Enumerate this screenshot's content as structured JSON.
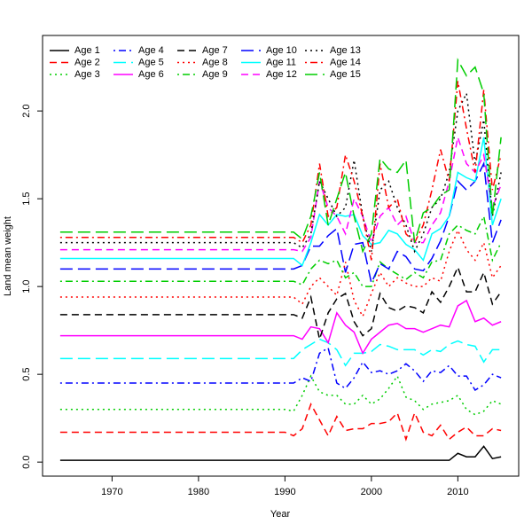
{
  "chart_data": {
    "type": "line",
    "x": [
      1964,
      1990,
      1991,
      1992,
      1993,
      1994,
      1995,
      1996,
      1997,
      1998,
      1999,
      2000,
      2001,
      2002,
      2003,
      2004,
      2005,
      2006,
      2007,
      2008,
      2009,
      2010,
      2011,
      2012,
      2013,
      2014,
      2015
    ],
    "xlim": [
      1961.96,
      2017.04
    ],
    "xticks": [
      1970,
      1980,
      1990,
      2000,
      2010
    ],
    "ylim": [
      -0.08,
      2.43
    ],
    "yticks": [
      {
        "value": 0,
        "label": "0.0"
      },
      {
        "value": 0.5,
        "label": "0.5"
      },
      {
        "value": 1,
        "label": "1.0"
      },
      {
        "value": 1.5,
        "label": "1.5"
      },
      {
        "value": 2,
        "label": "2.0"
      }
    ],
    "xlabel": "Year",
    "ylabel": "Land mean weight",
    "legend": "top-left",
    "series": [
      {
        "name": "Age 1",
        "color": "#000000",
        "linestyle": "solid",
        "values": [
          0.01,
          0.01,
          0.01,
          0.01,
          0.01,
          0.01,
          0.01,
          0.01,
          0.01,
          0.01,
          0.01,
          0.01,
          0.01,
          0.01,
          0.01,
          0.01,
          0.01,
          0.01,
          0.01,
          0.01,
          0.01,
          0.05,
          0.03,
          0.03,
          0.09,
          0.02,
          0.03
        ]
      },
      {
        "name": "Age 2",
        "color": "#ff0000",
        "linestyle": "dashed",
        "values": [
          0.17,
          0.17,
          0.15,
          0.19,
          0.33,
          0.24,
          0.15,
          0.26,
          0.18,
          0.19,
          0.19,
          0.22,
          0.22,
          0.23,
          0.28,
          0.13,
          0.28,
          0.17,
          0.15,
          0.21,
          0.13,
          0.17,
          0.2,
          0.15,
          0.15,
          0.19,
          0.18
        ]
      },
      {
        "name": "Age 3",
        "color": "#00cd00",
        "linestyle": "dotted",
        "values": [
          0.3,
          0.3,
          0.29,
          0.38,
          0.49,
          0.4,
          0.38,
          0.38,
          0.33,
          0.33,
          0.38,
          0.33,
          0.36,
          0.42,
          0.49,
          0.37,
          0.35,
          0.3,
          0.33,
          0.34,
          0.35,
          0.38,
          0.3,
          0.27,
          0.29,
          0.35,
          0.33
        ]
      },
      {
        "name": "Age 4",
        "color": "#0000ff",
        "linestyle": "dotdash",
        "values": [
          0.45,
          0.45,
          0.45,
          0.48,
          0.46,
          0.62,
          0.65,
          0.45,
          0.42,
          0.48,
          0.57,
          0.51,
          0.52,
          0.5,
          0.52,
          0.56,
          0.52,
          0.46,
          0.52,
          0.51,
          0.55,
          0.49,
          0.49,
          0.41,
          0.44,
          0.5,
          0.48
        ]
      },
      {
        "name": "Age 5",
        "color": "#00ffff",
        "linestyle": "longdash",
        "values": [
          0.59,
          0.59,
          0.59,
          0.64,
          0.67,
          0.7,
          0.68,
          0.64,
          0.55,
          0.62,
          0.62,
          0.63,
          0.67,
          0.66,
          0.64,
          0.64,
          0.64,
          0.61,
          0.64,
          0.63,
          0.67,
          0.69,
          0.67,
          0.66,
          0.57,
          0.64,
          0.64
        ]
      },
      {
        "name": "Age 6",
        "color": "#ff00ff",
        "linestyle": "solid",
        "values": [
          0.72,
          0.72,
          0.72,
          0.7,
          0.77,
          0.76,
          0.68,
          0.85,
          0.78,
          0.74,
          0.62,
          0.7,
          0.74,
          0.78,
          0.79,
          0.76,
          0.76,
          0.74,
          0.76,
          0.78,
          0.77,
          0.89,
          0.92,
          0.8,
          0.82,
          0.78,
          0.8
        ]
      },
      {
        "name": "Age 7",
        "color": "#000000",
        "linestyle": "dashed",
        "values": [
          0.84,
          0.84,
          0.84,
          0.82,
          0.94,
          0.7,
          0.85,
          0.93,
          0.96,
          0.8,
          0.72,
          0.76,
          0.96,
          0.88,
          0.86,
          0.89,
          0.88,
          0.85,
          0.97,
          0.91,
          1.0,
          1.11,
          0.97,
          0.97,
          1.08,
          0.9,
          0.97
        ]
      },
      {
        "name": "Age 8",
        "color": "#ff0000",
        "linestyle": "dotted",
        "values": [
          0.94,
          0.94,
          0.94,
          0.9,
          1.0,
          1.05,
          1.0,
          0.95,
          1.14,
          0.92,
          0.83,
          0.96,
          1.08,
          1.0,
          1.05,
          1.02,
          1.0,
          1.0,
          1.05,
          1.03,
          1.2,
          1.32,
          1.21,
          1.15,
          1.25,
          1.05,
          1.12
        ]
      },
      {
        "name": "Age 9",
        "color": "#00cd00",
        "linestyle": "dotdash",
        "values": [
          1.03,
          1.03,
          1.03,
          1.01,
          1.1,
          1.15,
          1.13,
          1.15,
          1.05,
          1.08,
          1.0,
          1.0,
          1.14,
          1.1,
          1.07,
          1.04,
          1.08,
          1.05,
          1.14,
          1.15,
          1.3,
          1.35,
          1.32,
          1.3,
          1.4,
          1.15,
          1.25
        ]
      },
      {
        "name": "Age 10",
        "color": "#0000ff",
        "linestyle": "longdash",
        "values": [
          1.1,
          1.1,
          1.1,
          1.12,
          1.23,
          1.23,
          1.29,
          1.33,
          1.08,
          1.24,
          1.25,
          1.02,
          1.13,
          1.1,
          1.2,
          1.17,
          1.1,
          1.09,
          1.16,
          1.26,
          1.4,
          1.6,
          1.55,
          1.6,
          1.7,
          1.25,
          1.38
        ]
      },
      {
        "name": "Age 11",
        "color": "#00ffff",
        "linestyle": "solid",
        "values": [
          1.16,
          1.16,
          1.16,
          1.12,
          1.25,
          1.41,
          1.35,
          1.41,
          1.4,
          1.41,
          1.29,
          1.24,
          1.25,
          1.32,
          1.3,
          1.24,
          1.21,
          1.15,
          1.3,
          1.33,
          1.4,
          1.65,
          1.62,
          1.6,
          1.85,
          1.35,
          1.5
        ]
      },
      {
        "name": "Age 12",
        "color": "#ff00ff",
        "linestyle": "dashed",
        "values": [
          1.21,
          1.21,
          1.21,
          1.2,
          1.28,
          1.6,
          1.45,
          1.4,
          1.3,
          1.5,
          1.4,
          1.25,
          1.4,
          1.45,
          1.35,
          1.4,
          1.25,
          1.25,
          1.35,
          1.42,
          1.6,
          1.85,
          1.7,
          1.65,
          1.75,
          1.45,
          1.58
        ]
      },
      {
        "name": "Age 13",
        "color": "#000000",
        "linestyle": "dotted",
        "values": [
          1.25,
          1.25,
          1.25,
          1.22,
          1.3,
          1.6,
          1.5,
          1.4,
          1.45,
          1.72,
          1.4,
          1.2,
          1.55,
          1.6,
          1.45,
          1.35,
          1.2,
          1.3,
          1.45,
          1.5,
          1.65,
          2.0,
          2.1,
          1.7,
          1.95,
          1.4,
          1.65
        ]
      },
      {
        "name": "Age 14",
        "color": "#ff0000",
        "linestyle": "dotdash",
        "values": [
          1.28,
          1.28,
          1.28,
          1.25,
          1.35,
          1.7,
          1.4,
          1.45,
          1.75,
          1.6,
          1.4,
          1.15,
          1.7,
          1.45,
          1.5,
          1.3,
          1.25,
          1.35,
          1.55,
          1.78,
          1.6,
          2.17,
          1.9,
          1.65,
          2.12,
          1.55,
          1.75
        ]
      },
      {
        "name": "Age 15",
        "color": "#00cd00",
        "linestyle": "longdash",
        "values": [
          1.31,
          1.31,
          1.31,
          1.27,
          1.4,
          1.65,
          1.35,
          1.5,
          1.65,
          1.4,
          1.2,
          1.3,
          1.73,
          1.67,
          1.65,
          1.72,
          1.25,
          1.42,
          1.45,
          1.52,
          1.55,
          2.29,
          2.2,
          2.25,
          2.1,
          1.4,
          1.85
        ]
      }
    ]
  }
}
